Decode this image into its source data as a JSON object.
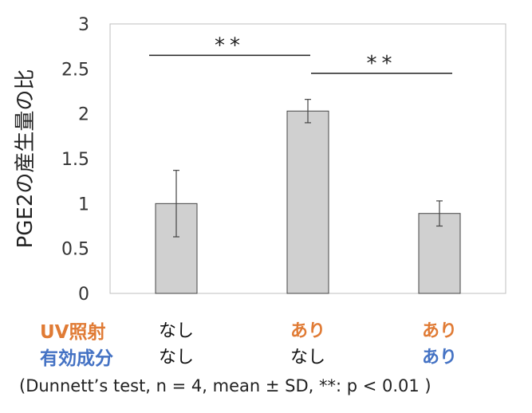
{
  "colors": {
    "bar_fill": "#d0d0d0",
    "bar_stroke": "#444444",
    "uv_label": "#e07b35",
    "active_label": "#4472c4",
    "highlight_uv": "#e07b35",
    "highlight_active": "#4472c4",
    "text": "#222222"
  },
  "chart_data": {
    "type": "bar",
    "ylabel": "PGE2の産生量の比",
    "ylim": [
      0,
      3
    ],
    "yticks": [
      "0",
      "0.5",
      "1",
      "1.5",
      "2",
      "2.5",
      "3"
    ],
    "grid": false,
    "bars": [
      {
        "value": 1.0,
        "sd": 0.37
      },
      {
        "value": 2.03,
        "sd": 0.13
      },
      {
        "value": 0.89,
        "sd": 0.14
      }
    ],
    "significance": [
      {
        "from": 0,
        "to": 1,
        "label": "**",
        "y": 2.65
      },
      {
        "from": 1,
        "to": 2,
        "label": "**",
        "y": 2.45
      }
    ]
  },
  "conditions": {
    "uv_label": "UV照射",
    "active_label": "有効成分",
    "uv": [
      "なし",
      "あり",
      "あり"
    ],
    "uv_highlight": [
      false,
      true,
      true
    ],
    "active": [
      "なし",
      "なし",
      "あり"
    ],
    "active_highlight": [
      false,
      false,
      true
    ]
  },
  "footnote": "(Dunnett’s test, n = 4, mean ± SD, **: p < 0.01 )"
}
